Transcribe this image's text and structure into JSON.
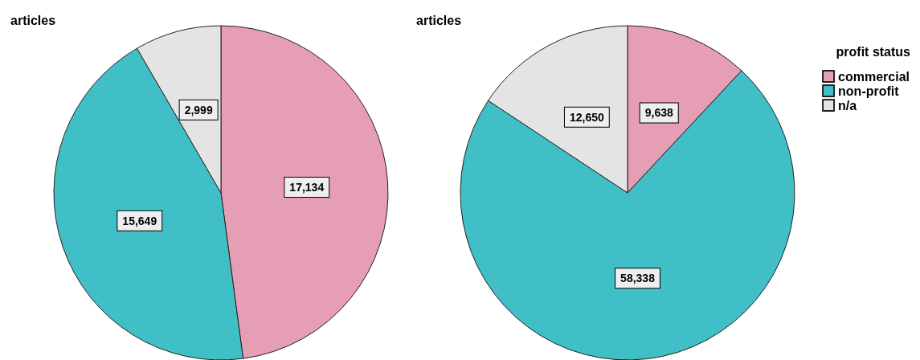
{
  "chart_data": [
    {
      "type": "pie",
      "title": "articles",
      "categories": [
        null,
        null,
        null
      ],
      "values": [
        17134,
        15649,
        2999
      ],
      "value_labels": [
        "17,134",
        "15,649",
        "2,999"
      ],
      "colors": [
        "#e69eb4",
        "#40c0c6",
        "#e4e4e4"
      ],
      "legend": false
    },
    {
      "type": "pie",
      "title": "articles",
      "categories": [
        "commercial",
        "non-profit",
        "n/a"
      ],
      "values": [
        9638,
        58338,
        12650
      ],
      "value_labels": [
        "9,638",
        "58,338",
        "12,650"
      ],
      "colors": [
        "#e69eb4",
        "#40c0c6",
        "#e4e4e4"
      ],
      "legend": "top right",
      "legend_title": "profit status"
    }
  ]
}
